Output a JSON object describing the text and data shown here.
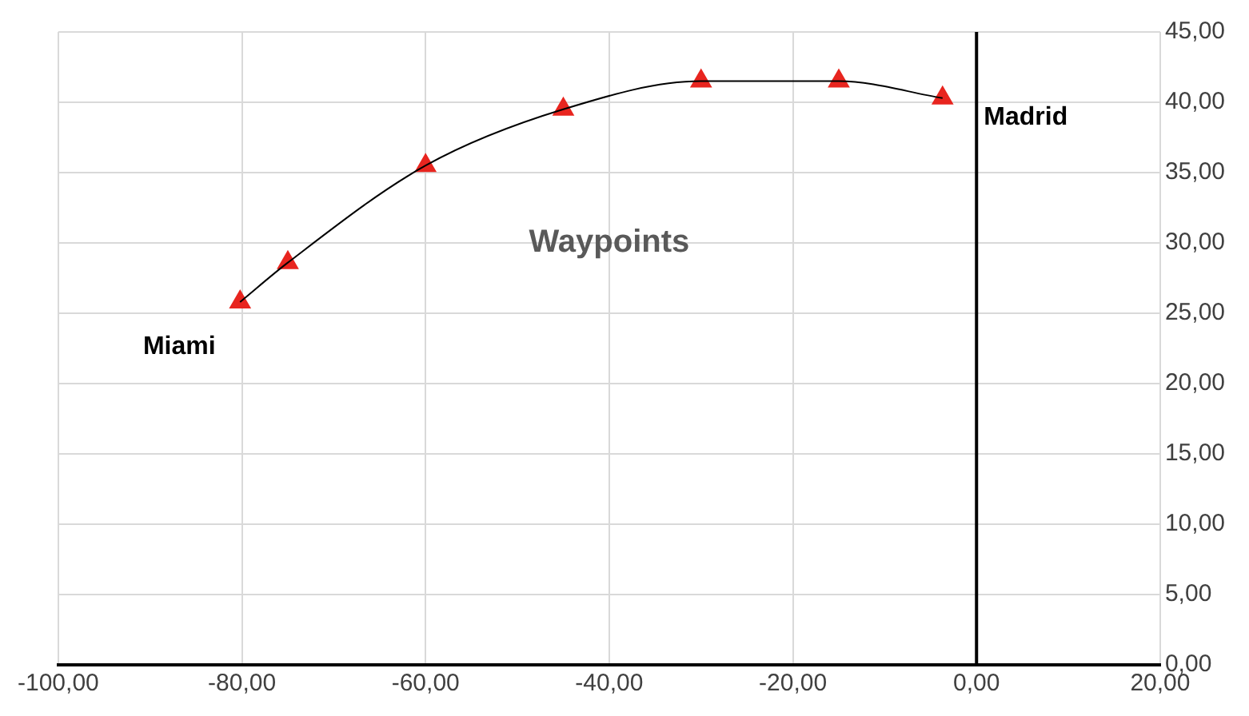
{
  "chart_data": {
    "type": "scatter",
    "title": "Waypoints",
    "series": [
      {
        "type": "line",
        "color": "#000000",
        "x": [
          -80.2,
          -75,
          -60,
          -45,
          -30,
          -15,
          -3.7
        ],
        "values": [
          25.8,
          28.6,
          35.5,
          39.5,
          41.5,
          41.5,
          40.3
        ],
        "marker": "none"
      },
      {
        "type": "scatter",
        "color": "#e8251f",
        "x": [
          -80.2,
          -75,
          -60,
          -45,
          -30,
          -15,
          -3.7
        ],
        "values": [
          25.8,
          28.6,
          35.5,
          39.5,
          41.5,
          41.5,
          40.3
        ],
        "marker": "triangle"
      }
    ],
    "xlim": [
      -100,
      20
    ],
    "xticks": [
      {
        "value": -100,
        "label": "-100,00"
      },
      {
        "value": -80,
        "label": "-80,00"
      },
      {
        "value": -60,
        "label": "-60,00"
      },
      {
        "value": -40,
        "label": "-40,00"
      },
      {
        "value": -20,
        "label": "-20,00"
      },
      {
        "value": 0,
        "label": "0,00"
      },
      {
        "value": 20,
        "label": "20,00"
      }
    ],
    "ylim": [
      0,
      45
    ],
    "yticks": [
      {
        "value": 0,
        "label": "0,00"
      },
      {
        "value": 5,
        "label": "5,00"
      },
      {
        "value": 10,
        "label": "10,00"
      },
      {
        "value": 15,
        "label": "15,00"
      },
      {
        "value": 20,
        "label": "20,00"
      },
      {
        "value": 25,
        "label": "25,00"
      },
      {
        "value": 30,
        "label": "30,00"
      },
      {
        "value": 35,
        "label": "35,00"
      },
      {
        "value": 40,
        "label": "40,00"
      },
      {
        "value": 45,
        "label": "45,00"
      }
    ],
    "ref_lines": [
      {
        "axis": "x",
        "value": 0,
        "color": "#000000"
      }
    ],
    "annotations": [
      {
        "text": "Miami",
        "x": -80.2,
        "y": 25.8
      },
      {
        "text": "Madrid",
        "x": -3.7,
        "y": 40.3
      }
    ],
    "grid": true,
    "legend": false
  }
}
